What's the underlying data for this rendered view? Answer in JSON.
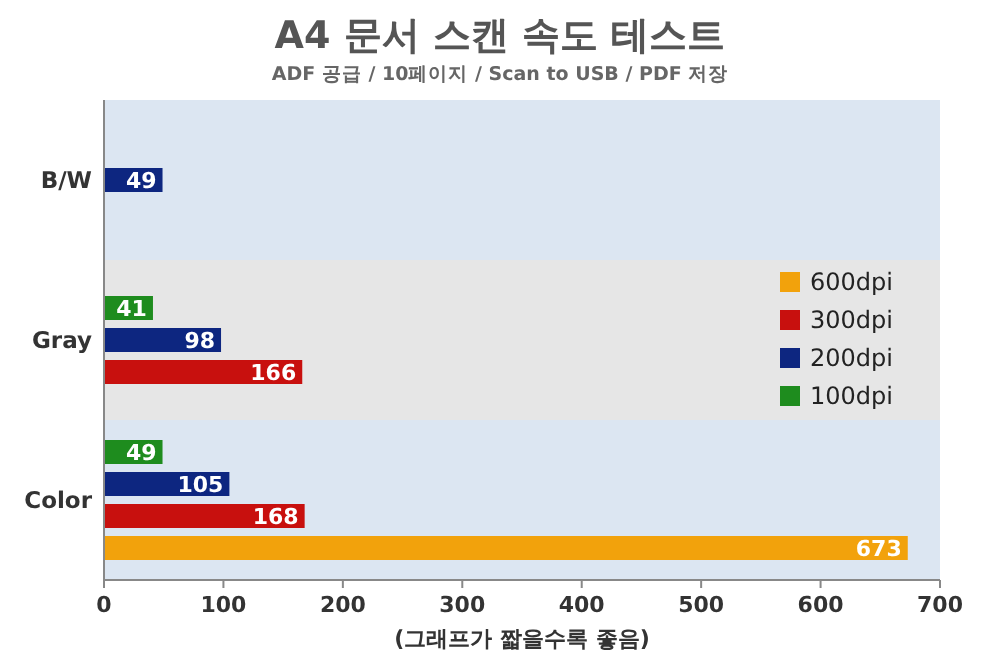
{
  "chart_data": {
    "type": "bar",
    "orientation": "horizontal",
    "title": "A4 문서 스캔 속도 테스트",
    "subtitle": "ADF 공급 / 10페이지 / Scan to USB / PDF 저장",
    "xlabel": "(그래프가 짧을수록 좋음)",
    "categories": [
      "B/W",
      "Gray",
      "Color"
    ],
    "series": [
      {
        "name": "100dpi",
        "color": "#1e8c1e",
        "values": [
          null,
          41,
          49
        ]
      },
      {
        "name": "200dpi",
        "color": "#0d2680",
        "values": [
          49,
          98,
          105
        ]
      },
      {
        "name": "300dpi",
        "color": "#c8100e",
        "values": [
          null,
          166,
          168
        ]
      },
      {
        "name": "600dpi",
        "color": "#f2a20c",
        "values": [
          null,
          null,
          673
        ]
      }
    ],
    "xlim": [
      0,
      700
    ],
    "xticks": [
      0,
      100,
      200,
      300,
      400,
      500,
      600,
      700
    ],
    "grid": false,
    "legend": "right",
    "data_labels": true
  }
}
